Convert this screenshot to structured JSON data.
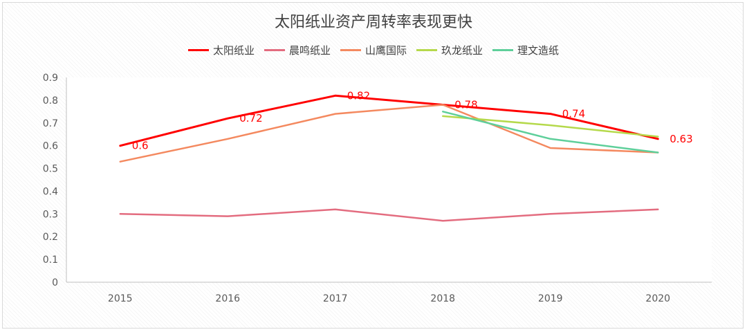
{
  "chart_data": {
    "type": "line",
    "title": "太阳纸业资产周转率表现更快",
    "xlabel": "",
    "ylabel": "",
    "categories": [
      "2015",
      "2016",
      "2017",
      "2018",
      "2019",
      "2020"
    ],
    "ylim": [
      0,
      0.9
    ],
    "yticks": [
      "0",
      "0.1",
      "0.2",
      "0.3",
      "0.4",
      "0.5",
      "0.6",
      "0.7",
      "0.8",
      "0.9"
    ],
    "grid": false,
    "legend_position": "top",
    "series": [
      {
        "name": "太阳纸业",
        "color": "#ff0000",
        "values": [
          0.6,
          0.72,
          0.82,
          0.78,
          0.74,
          0.63
        ],
        "data_labels": [
          "0.6",
          "0.72",
          "0.82",
          "0.78",
          "0.74",
          "0.63"
        ]
      },
      {
        "name": "晨鸣纸业",
        "color": "#e36c7f",
        "values": [
          0.3,
          0.29,
          0.32,
          0.27,
          0.3,
          0.32
        ]
      },
      {
        "name": "山鹰国际",
        "color": "#f4895f",
        "values": [
          0.53,
          0.63,
          0.74,
          0.78,
          0.59,
          0.57
        ]
      },
      {
        "name": "玖龙纸业",
        "color": "#b5d94b",
        "values": [
          null,
          null,
          null,
          0.73,
          0.69,
          0.64
        ]
      },
      {
        "name": "理文造纸",
        "color": "#5ecf9a",
        "values": [
          null,
          null,
          null,
          0.75,
          0.63,
          0.57
        ]
      }
    ]
  }
}
